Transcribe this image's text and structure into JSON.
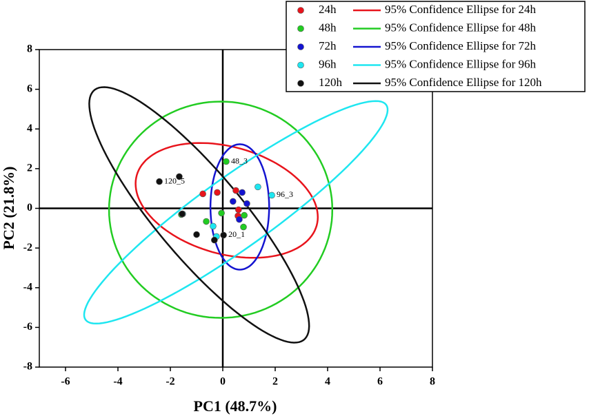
{
  "chart_data": {
    "type": "scatter",
    "xlabel": "PC1 (48.7%)",
    "ylabel": "PC2 (21.8%)",
    "xlim": [
      -7,
      8
    ],
    "ylim": [
      -8,
      8
    ],
    "xticks": [
      -6,
      -4,
      -2,
      0,
      2,
      4,
      6,
      8
    ],
    "yticks": [
      -8,
      -6,
      -4,
      -2,
      0,
      2,
      4,
      6,
      8
    ],
    "series": [
      {
        "name": "24h",
        "color": "#e8141c",
        "x": [
          -0.76,
          -0.21,
          0.5,
          0.6,
          0.58
        ],
        "y": [
          0.73,
          0.8,
          0.9,
          -0.07,
          -0.38
        ]
      },
      {
        "name": "48h",
        "color": "#22cc22",
        "x": [
          0.13,
          -1.58,
          -0.63,
          -0.05,
          0.82,
          0.79
        ],
        "y": [
          2.36,
          -0.31,
          -0.66,
          -0.24,
          -0.35,
          -0.94
        ]
      },
      {
        "name": "72h",
        "color": "#1414d0",
        "x": [
          0.39,
          0.74,
          0.92,
          0.63
        ],
        "y": [
          0.35,
          0.8,
          0.24,
          -0.56
        ]
      },
      {
        "name": "96h",
        "color": "#1ee6f0",
        "x": [
          1.34,
          1.87,
          -0.37,
          -0.24,
          -1.53
        ],
        "y": [
          1.08,
          0.66,
          -0.9,
          -1.42,
          -0.28
        ]
      },
      {
        "name": "120h",
        "color": "#111111",
        "x": [
          -2.42,
          -1.66,
          -1.55,
          -1.0,
          -0.32,
          0.03
        ],
        "y": [
          1.35,
          1.6,
          -0.28,
          -1.32,
          -1.6,
          -1.35
        ]
      }
    ],
    "ellipses": [
      {
        "name": "95% Confidence Ellipse for 24h",
        "color": "#e8141c",
        "cx": 0.15,
        "cy": 0.4,
        "a": 3.7,
        "b": 2.6,
        "angle": -28.8
      },
      {
        "name": "95% Confidence Ellipse for 48h",
        "color": "#22cc22",
        "cx": -0.08,
        "cy": -0.07,
        "a": 4.26,
        "b": 5.45,
        "angle": 0
      },
      {
        "name": "95% Confidence Ellipse for 72h",
        "color": "#1414d0",
        "cx": 0.65,
        "cy": 0.07,
        "a": 1.12,
        "b": 3.16,
        "angle": 0
      },
      {
        "name": "95% Confidence Ellipse for 96h",
        "color": "#1ee6f0",
        "cx": 0.5,
        "cy": -0.2,
        "a": 7.9,
        "b": 1.6,
        "angle": 44
      },
      {
        "name": "95% Confidence Ellipse for 120h",
        "color": "#111111",
        "cx": -0.9,
        "cy": -0.33,
        "a": 7.47,
        "b": 1.8,
        "angle": -58.5
      }
    ],
    "annotations": [
      {
        "text": "120_5",
        "x": -2.42,
        "y": 1.35
      },
      {
        "text": "48_3",
        "x": 0.13,
        "y": 2.36
      },
      {
        "text": "96_3",
        "x": 1.87,
        "y": 0.66
      },
      {
        "text": "20_1",
        "x": 0.03,
        "y": -1.35
      }
    ]
  }
}
